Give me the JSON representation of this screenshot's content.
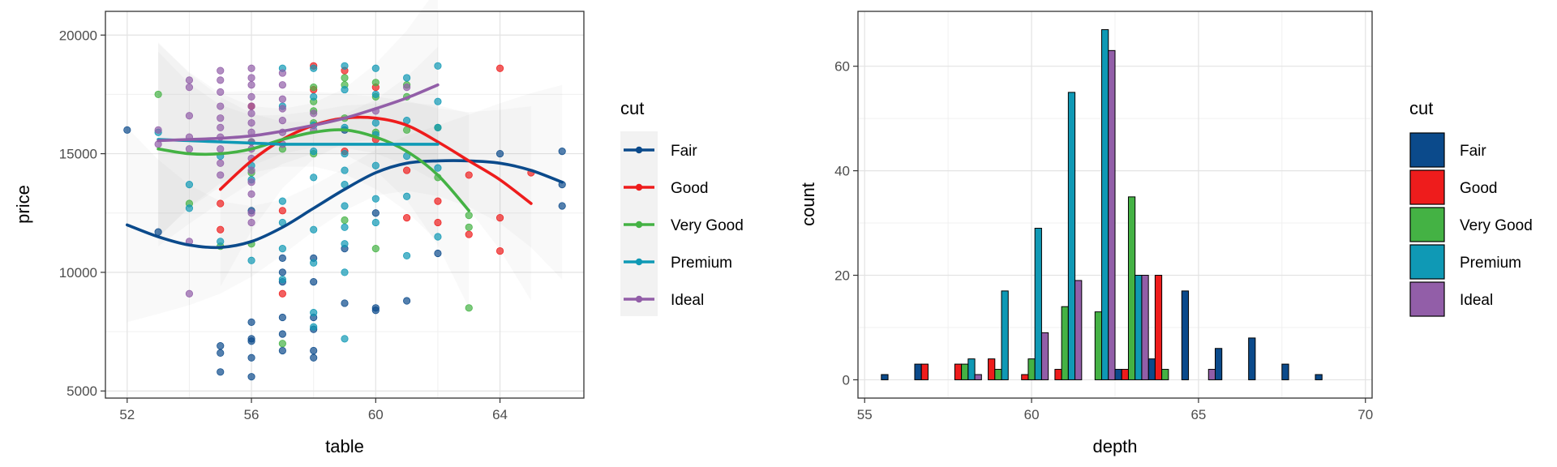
{
  "colors": {
    "Fair": "#0b4a8b",
    "Good": "#ee1c1c",
    "Very Good": "#44b244",
    "Premium": "#0f99b5",
    "Ideal": "#925ea8"
  },
  "chart_data": [
    {
      "type": "scatter",
      "xlabel": "table",
      "ylabel": "price",
      "xlim": [
        51.3,
        66.7
      ],
      "ylim": [
        4700,
        21000
      ],
      "xticks": [
        52,
        56,
        60,
        64
      ],
      "yticks": [
        5000,
        10000,
        15000,
        20000
      ],
      "grid": true,
      "legend": {
        "title": "cut",
        "position": "right",
        "entries": [
          "Fair",
          "Good",
          "Very Good",
          "Premium",
          "Ideal"
        ]
      },
      "smooth": [
        {
          "name": "Fair",
          "x": [
            52,
            53,
            54,
            55,
            56,
            57,
            58,
            59,
            60,
            61,
            62,
            63,
            64,
            65,
            66
          ],
          "y": [
            12000,
            11500,
            11150,
            11050,
            11300,
            11900,
            12700,
            13500,
            14200,
            14600,
            14700,
            14700,
            14600,
            14300,
            13800
          ]
        },
        {
          "name": "Good",
          "x": [
            55,
            56,
            57,
            58,
            59,
            60,
            61,
            62,
            63,
            64,
            65
          ],
          "y": [
            13500,
            14700,
            15600,
            16200,
            16500,
            16500,
            16200,
            15500,
            14700,
            13900,
            12900
          ]
        },
        {
          "name": "Very Good",
          "x": [
            53,
            54,
            55,
            56,
            57,
            58,
            59,
            60,
            61,
            62,
            63
          ],
          "y": [
            15200,
            15000,
            15000,
            15200,
            15600,
            15900,
            16000,
            15700,
            15100,
            14100,
            12600
          ]
        },
        {
          "name": "Premium",
          "x": [
            53,
            54,
            55,
            56,
            57,
            58,
            59,
            60,
            61,
            62
          ],
          "y": [
            15600,
            15550,
            15500,
            15450,
            15400,
            15400,
            15400,
            15400,
            15400,
            15400
          ]
        },
        {
          "name": "Ideal",
          "x": [
            53,
            54,
            55,
            56,
            57,
            58,
            59,
            60,
            61,
            62
          ],
          "y": [
            15550,
            15600,
            15650,
            15750,
            15950,
            16200,
            16500,
            16900,
            17350,
            17900
          ]
        }
      ],
      "series": [
        {
          "name": "Fair",
          "points": [
            [
              52,
              16000
            ],
            [
              53,
              11700
            ],
            [
              55,
              6900
            ],
            [
              55,
              6600
            ],
            [
              55,
              5800
            ],
            [
              56,
              5600
            ],
            [
              56,
              6400
            ],
            [
              56,
              7100
            ],
            [
              56,
              7200
            ],
            [
              56,
              7900
            ],
            [
              56,
              12600
            ],
            [
              57,
              6700
            ],
            [
              57,
              7400
            ],
            [
              57,
              8100
            ],
            [
              57,
              9600
            ],
            [
              57,
              10000
            ],
            [
              57,
              10600
            ],
            [
              58,
              6400
            ],
            [
              58,
              6700
            ],
            [
              58,
              7600
            ],
            [
              58,
              8100
            ],
            [
              58,
              9600
            ],
            [
              58,
              10600
            ],
            [
              59,
              8700
            ],
            [
              59,
              11000
            ],
            [
              59,
              16000
            ],
            [
              60,
              8500
            ],
            [
              60,
              8400
            ],
            [
              60,
              12500
            ],
            [
              61,
              8800
            ],
            [
              62,
              10800
            ],
            [
              64,
              15000
            ],
            [
              66,
              15100
            ],
            [
              66,
              12800
            ],
            [
              66,
              13700
            ]
          ]
        },
        {
          "name": "Good",
          "points": [
            [
              55,
              12900
            ],
            [
              55,
              11800
            ],
            [
              56,
              17000
            ],
            [
              57,
              9100
            ],
            [
              57,
              12600
            ],
            [
              58,
              17700
            ],
            [
              58,
              18700
            ],
            [
              59,
              18500
            ],
            [
              59,
              15100
            ],
            [
              60,
              17800
            ],
            [
              60,
              15600
            ],
            [
              61,
              14300
            ],
            [
              61,
              12300
            ],
            [
              62,
              13000
            ],
            [
              62,
              12100
            ],
            [
              63,
              14100
            ],
            [
              63,
              11600
            ],
            [
              64,
              18600
            ],
            [
              64,
              12300
            ],
            [
              64,
              10900
            ],
            [
              65,
              14200
            ]
          ]
        },
        {
          "name": "Very Good",
          "points": [
            [
              53,
              17500
            ],
            [
              54,
              12900
            ],
            [
              55,
              11100
            ],
            [
              56,
              11200
            ],
            [
              56,
              14200
            ],
            [
              56,
              15500
            ],
            [
              57,
              7000
            ],
            [
              57,
              15200
            ],
            [
              58,
              15000
            ],
            [
              58,
              16300
            ],
            [
              58,
              16800
            ],
            [
              58,
              17200
            ],
            [
              58,
              17800
            ],
            [
              59,
              16500
            ],
            [
              59,
              17900
            ],
            [
              59,
              18200
            ],
            [
              59,
              12200
            ],
            [
              60,
              11000
            ],
            [
              60,
              17400
            ],
            [
              60,
              18000
            ],
            [
              60,
              15900
            ],
            [
              61,
              16000
            ],
            [
              61,
              17900
            ],
            [
              61,
              17400
            ],
            [
              62,
              16100
            ],
            [
              62,
              14000
            ],
            [
              63,
              12400
            ],
            [
              63,
              11900
            ],
            [
              63,
              8500
            ]
          ]
        },
        {
          "name": "Premium",
          "points": [
            [
              53,
              15900
            ],
            [
              54,
              13700
            ],
            [
              54,
              12700
            ],
            [
              55,
              14900
            ],
            [
              55,
              11300
            ],
            [
              56,
              14500
            ],
            [
              56,
              13900
            ],
            [
              56,
              10500
            ],
            [
              57,
              18600
            ],
            [
              57,
              17000
            ],
            [
              57,
              13000
            ],
            [
              57,
              12100
            ],
            [
              57,
              11000
            ],
            [
              57,
              9700
            ],
            [
              58,
              18600
            ],
            [
              58,
              17400
            ],
            [
              58,
              16200
            ],
            [
              58,
              15100
            ],
            [
              58,
              14000
            ],
            [
              58,
              11800
            ],
            [
              58,
              10400
            ],
            [
              58,
              8300
            ],
            [
              58,
              7700
            ],
            [
              59,
              18700
            ],
            [
              59,
              17700
            ],
            [
              59,
              16100
            ],
            [
              59,
              15000
            ],
            [
              59,
              14300
            ],
            [
              59,
              13700
            ],
            [
              59,
              12800
            ],
            [
              59,
              11900
            ],
            [
              59,
              11200
            ],
            [
              59,
              10000
            ],
            [
              59,
              7200
            ],
            [
              60,
              18600
            ],
            [
              60,
              17500
            ],
            [
              60,
              16300
            ],
            [
              60,
              15800
            ],
            [
              60,
              14500
            ],
            [
              60,
              13100
            ],
            [
              60,
              12100
            ],
            [
              61,
              18200
            ],
            [
              61,
              16400
            ],
            [
              61,
              14900
            ],
            [
              61,
              13200
            ],
            [
              61,
              10700
            ],
            [
              62,
              18700
            ],
            [
              62,
              17200
            ],
            [
              62,
              16100
            ],
            [
              62,
              14400
            ],
            [
              62,
              11500
            ]
          ]
        },
        {
          "name": "Ideal",
          "points": [
            [
              53,
              16000
            ],
            [
              53,
              15400
            ],
            [
              54,
              18100
            ],
            [
              54,
              17800
            ],
            [
              54,
              16600
            ],
            [
              54,
              15700
            ],
            [
              54,
              15200
            ],
            [
              54,
              11300
            ],
            [
              54,
              9100
            ],
            [
              55,
              18500
            ],
            [
              55,
              18100
            ],
            [
              55,
              17600
            ],
            [
              55,
              17000
            ],
            [
              55,
              16500
            ],
            [
              55,
              16100
            ],
            [
              55,
              15700
            ],
            [
              55,
              15200
            ],
            [
              55,
              14600
            ],
            [
              55,
              14100
            ],
            [
              56,
              18600
            ],
            [
              56,
              18200
            ],
            [
              56,
              17900
            ],
            [
              56,
              17400
            ],
            [
              56,
              17000
            ],
            [
              56,
              16700
            ],
            [
              56,
              16300
            ],
            [
              56,
              15900
            ],
            [
              56,
              15500
            ],
            [
              56,
              15200
            ],
            [
              56,
              14800
            ],
            [
              56,
              14300
            ],
            [
              56,
              13800
            ],
            [
              56,
              13300
            ],
            [
              56,
              12500
            ],
            [
              56,
              12100
            ],
            [
              57,
              18400
            ],
            [
              57,
              17900
            ],
            [
              57,
              17300
            ],
            [
              57,
              16900
            ],
            [
              57,
              16400
            ],
            [
              57,
              15900
            ],
            [
              57,
              15400
            ],
            [
              58,
              16700
            ],
            [
              58,
              16000
            ],
            [
              60,
              16800
            ],
            [
              61,
              17800
            ]
          ]
        }
      ]
    },
    {
      "type": "bar",
      "xlabel": "depth",
      "ylabel": "count",
      "xlim": [
        54.8,
        70.2
      ],
      "ylim": [
        -3.5,
        70.5
      ],
      "xticks": [
        55,
        60,
        65,
        70
      ],
      "yticks": [
        0,
        20,
        40,
        60
      ],
      "grid": true,
      "bin_centers": [
        56,
        57,
        58,
        59,
        60,
        61,
        62,
        63,
        64,
        65,
        66,
        67,
        68,
        69
      ],
      "bin_width": 1.0,
      "legend": {
        "title": "cut",
        "position": "right",
        "entries": [
          "Fair",
          "Good",
          "Very Good",
          "Premium",
          "Ideal"
        ]
      },
      "series": [
        {
          "name": "Fair",
          "values": [
            1,
            3,
            0,
            0,
            0,
            0,
            0,
            2,
            4,
            17,
            6,
            8,
            3,
            1
          ]
        },
        {
          "name": "Good",
          "values": [
            0,
            3,
            3,
            4,
            1,
            2,
            0,
            2,
            20,
            0,
            0,
            0,
            0,
            0
          ]
        },
        {
          "name": "Very Good",
          "values": [
            0,
            0,
            3,
            2,
            4,
            14,
            13,
            35,
            2,
            0,
            0,
            0,
            0,
            0
          ]
        },
        {
          "name": "Premium",
          "values": [
            0,
            0,
            4,
            17,
            29,
            55,
            67,
            20,
            0,
            0,
            0,
            0,
            0,
            0
          ]
        },
        {
          "name": "Ideal",
          "values": [
            0,
            0,
            1,
            0,
            9,
            19,
            63,
            20,
            0,
            2,
            0,
            0,
            0,
            0
          ]
        }
      ]
    }
  ]
}
